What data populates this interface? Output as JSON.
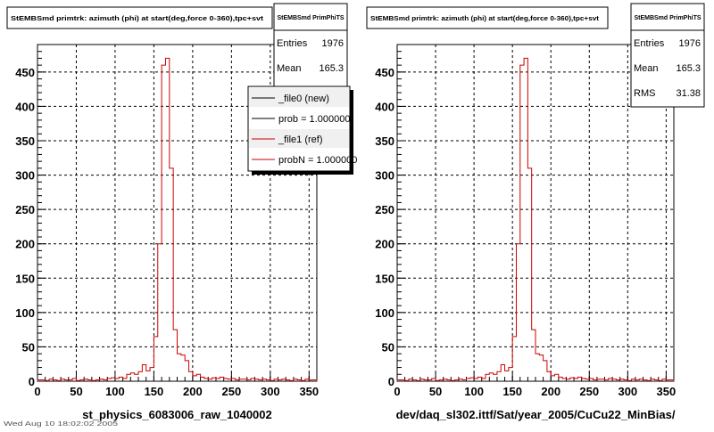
{
  "bottom_left_text": "Wed Aug 10 18:02:02 2005",
  "chart_data": [
    {
      "type": "step",
      "title": "StEMBSmd primtrk: azimuth (phi) at start(deg,force 0-360),tpc+svt",
      "xlabel": "st_physics_6083006_raw_1040002",
      "ylabel": "",
      "xlim": [
        0,
        360
      ],
      "ylim": [
        0,
        490
      ],
      "x_ticks": [
        0,
        50,
        100,
        150,
        200,
        250,
        300,
        350
      ],
      "y_ticks": [
        0,
        50,
        100,
        150,
        200,
        250,
        300,
        350,
        400,
        450
      ],
      "grid": true,
      "bin_width": 5,
      "stats": {
        "name": "StEMBSmd PrimPhiTS",
        "entries_label": "Entries",
        "entries": "1976",
        "mean_label": "Mean",
        "mean": "165.3"
      },
      "legend": {
        "placement": "top-right",
        "entries": [
          {
            "label": "_file0 (new)",
            "color": "#000000"
          },
          {
            "label": "prob = 1.000000",
            "color": "#000000"
          },
          {
            "label": "_file1 (ref)",
            "color": "#cc0000"
          },
          {
            "label": "probN = 1.000000",
            "color": "#cc0000"
          }
        ]
      },
      "series": [
        {
          "color": "#cc0000",
          "values": [
            2,
            2,
            1,
            3,
            2,
            1,
            3,
            2,
            2,
            4,
            1,
            2,
            3,
            2,
            1,
            2,
            3,
            2,
            4,
            5,
            4,
            6,
            4,
            10,
            12,
            10,
            14,
            24,
            15,
            20,
            65,
            200,
            460,
            470,
            310,
            75,
            40,
            38,
            30,
            14,
            8,
            10,
            6,
            4,
            3,
            5,
            4,
            6,
            4,
            3,
            4,
            2,
            3,
            3,
            2,
            4,
            3,
            2,
            3,
            2,
            1,
            3,
            2,
            3,
            2,
            1,
            3,
            2,
            1,
            3,
            2,
            2
          ]
        }
      ]
    },
    {
      "type": "step",
      "title": "StEMBSmd primtrk: azimuth (phi) at start(deg,force 0-360),tpc+svt",
      "xlabel": "dev/daq_sl302.ittf/Sat/year_2005/CuCu22_MinBias/",
      "ylabel": "",
      "xlim": [
        0,
        360
      ],
      "ylim": [
        0,
        490
      ],
      "x_ticks": [
        0,
        50,
        100,
        150,
        200,
        250,
        300,
        350
      ],
      "y_ticks": [
        0,
        50,
        100,
        150,
        200,
        250,
        300,
        350,
        400,
        450
      ],
      "grid": true,
      "bin_width": 5,
      "stats": {
        "name": "StEMBSmd PrimPhiTS",
        "entries_label": "Entries",
        "entries": "1976",
        "mean_label": "Mean",
        "mean": "165.3",
        "rms_label": "RMS",
        "rms": "31.38"
      },
      "series": [
        {
          "color": "#cc0000",
          "values": [
            2,
            2,
            1,
            3,
            2,
            1,
            3,
            2,
            2,
            4,
            1,
            2,
            3,
            2,
            1,
            2,
            3,
            2,
            4,
            5,
            4,
            6,
            4,
            10,
            12,
            10,
            14,
            24,
            15,
            20,
            65,
            200,
            460,
            470,
            310,
            75,
            40,
            38,
            30,
            14,
            8,
            10,
            6,
            4,
            3,
            5,
            4,
            6,
            4,
            3,
            4,
            2,
            3,
            3,
            2,
            4,
            3,
            2,
            3,
            2,
            1,
            3,
            2,
            3,
            2,
            1,
            3,
            2,
            1,
            3,
            2,
            2
          ]
        }
      ]
    }
  ]
}
